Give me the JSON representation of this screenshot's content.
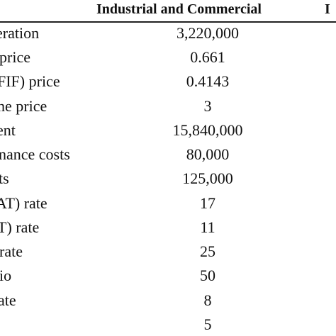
{
  "table": {
    "header": {
      "column": "Industrial and Commercial",
      "trailing": "I"
    },
    "rows": [
      {
        "label": "eration",
        "value": "3,220,000"
      },
      {
        "label": "price",
        "value": "0.661"
      },
      {
        "label": "FIF) price",
        "value": "0.4143"
      },
      {
        "label": "ne price",
        "value": "3"
      },
      {
        "label": "ent",
        "value": "15,840,000"
      },
      {
        "label": "nance costs",
        "value": "80,000"
      },
      {
        "label": "ts",
        "value": "125,000"
      },
      {
        "label": "AT) rate",
        "value": "17"
      },
      {
        "label": "T) rate",
        "value": "11"
      },
      {
        "label": "rate",
        "value": "25"
      },
      {
        "label": "io",
        "value": "50"
      },
      {
        "label": "ate",
        "value": "8"
      },
      {
        "label": "",
        "value": "5"
      }
    ]
  }
}
